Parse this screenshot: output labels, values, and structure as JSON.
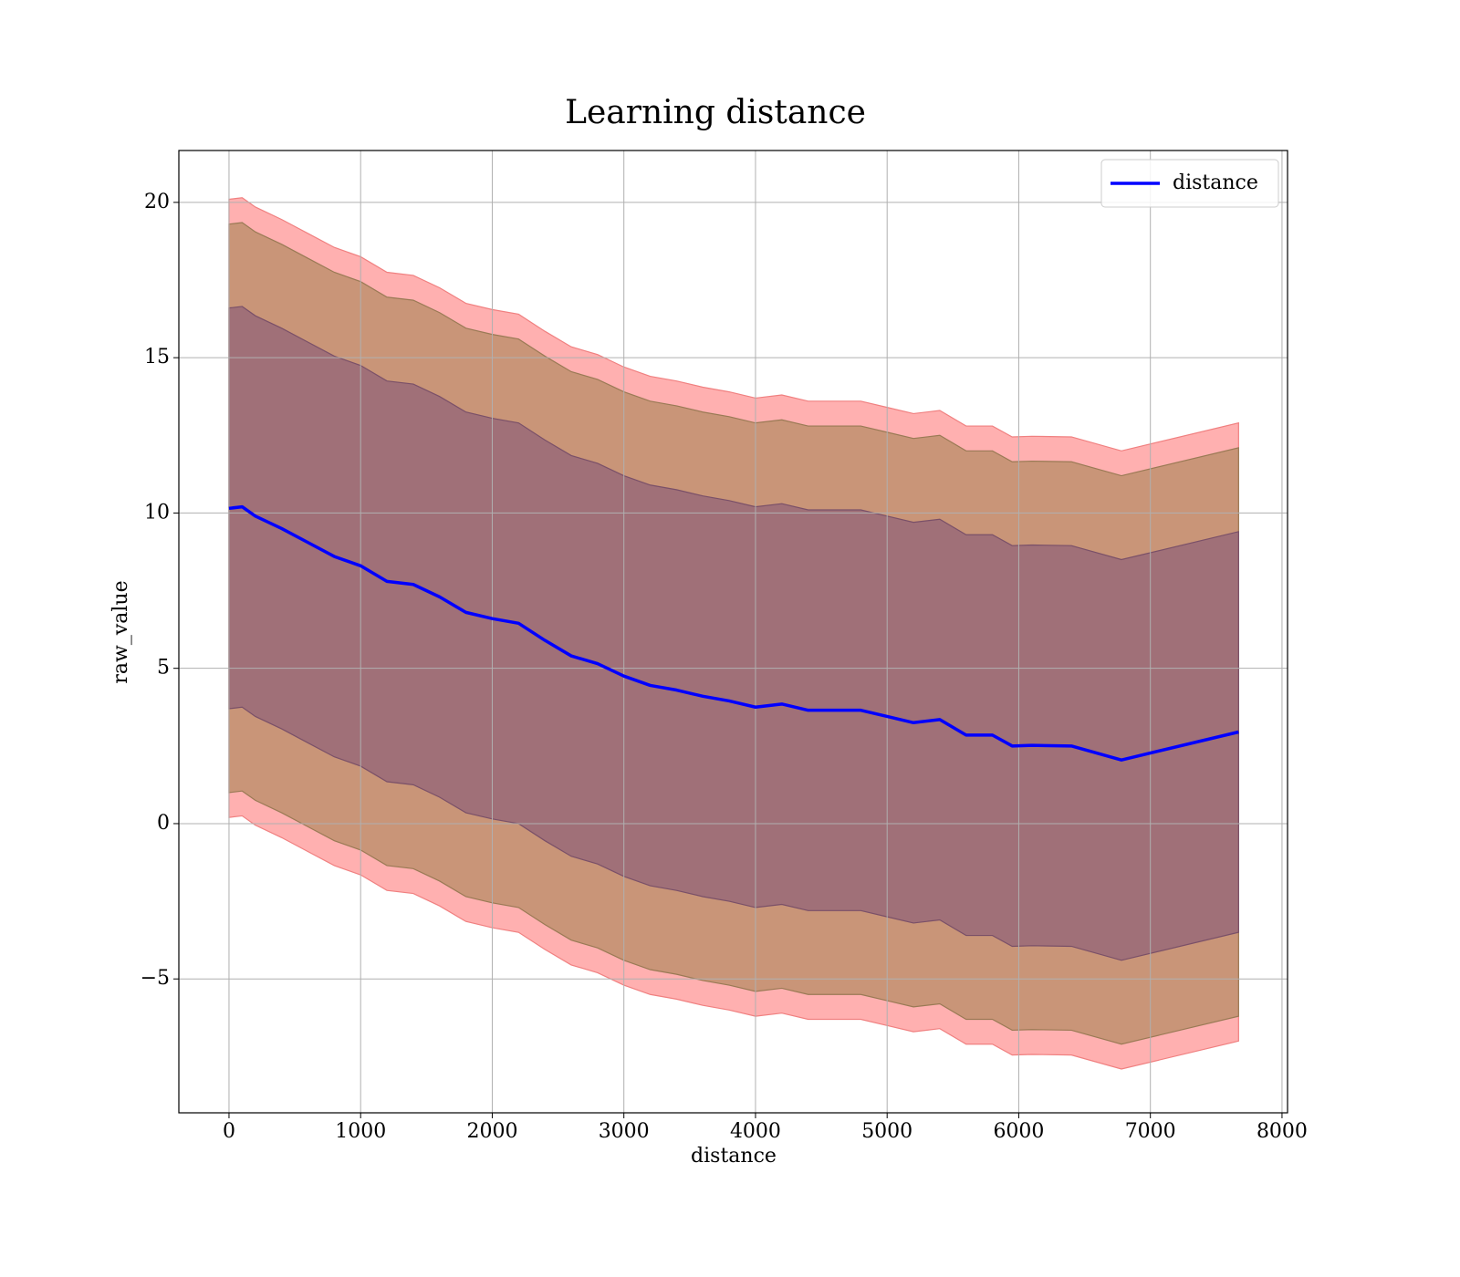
{
  "chart_data": {
    "type": "line",
    "title": "Learning distance",
    "xlabel": "distance",
    "ylabel": "raw_value",
    "x": [
      0,
      100,
      200,
      400,
      600,
      800,
      1000,
      1200,
      1400,
      1600,
      1800,
      2000,
      2200,
      2400,
      2600,
      2800,
      3000,
      3200,
      3400,
      3600,
      3800,
      4000,
      4200,
      4400,
      4600,
      4800,
      5000,
      5200,
      5400,
      5600,
      5800,
      5950,
      6100,
      6400,
      6780,
      7670
    ],
    "series": [
      {
        "name": "distance",
        "color": "#0000ff",
        "values": [
          10.15,
          10.2,
          9.9,
          9.5,
          9.05,
          8.6,
          8.3,
          7.8,
          7.7,
          7.3,
          6.8,
          6.6,
          6.45,
          5.9,
          5.4,
          5.15,
          4.75,
          4.45,
          4.3,
          4.1,
          3.95,
          3.75,
          3.85,
          3.65,
          3.65,
          3.65,
          3.45,
          3.25,
          3.35,
          2.85,
          2.85,
          2.5,
          2.52,
          2.5,
          2.05,
          2.95
        ]
      }
    ],
    "bands": [
      {
        "color": "#ffb0b0",
        "edge": "#f08080",
        "upper": [
          20.1,
          20.15,
          19.85,
          19.45,
          19.0,
          18.55,
          18.25,
          17.75,
          17.65,
          17.25,
          16.75,
          16.55,
          16.4,
          15.85,
          15.35,
          15.1,
          14.7,
          14.4,
          14.25,
          14.05,
          13.9,
          13.7,
          13.8,
          13.6,
          13.6,
          13.6,
          13.4,
          13.2,
          13.3,
          12.8,
          12.8,
          12.45,
          12.47,
          12.45,
          12.0,
          12.9
        ],
        "lower": [
          0.2,
          0.25,
          -0.05,
          -0.45,
          -0.9,
          -1.35,
          -1.65,
          -2.15,
          -2.25,
          -2.65,
          -3.15,
          -3.35,
          -3.5,
          -4.05,
          -4.55,
          -4.8,
          -5.2,
          -5.5,
          -5.65,
          -5.85,
          -6.0,
          -6.2,
          -6.1,
          -6.3,
          -6.3,
          -6.3,
          -6.5,
          -6.7,
          -6.6,
          -7.1,
          -7.1,
          -7.45,
          -7.43,
          -7.45,
          -7.9,
          -7.0
        ]
      },
      {
        "color": "#c99578",
        "edge": "#9a7a55",
        "upper": [
          19.3,
          19.35,
          19.05,
          18.65,
          18.2,
          17.75,
          17.45,
          16.95,
          16.85,
          16.45,
          15.95,
          15.75,
          15.6,
          15.05,
          14.55,
          14.3,
          13.9,
          13.6,
          13.45,
          13.25,
          13.1,
          12.9,
          13.0,
          12.8,
          12.8,
          12.8,
          12.6,
          12.4,
          12.5,
          12.0,
          12.0,
          11.65,
          11.67,
          11.65,
          11.2,
          12.1
        ],
        "lower": [
          1.0,
          1.05,
          0.75,
          0.35,
          -0.1,
          -0.55,
          -0.85,
          -1.35,
          -1.45,
          -1.85,
          -2.35,
          -2.55,
          -2.7,
          -3.25,
          -3.75,
          -4.0,
          -4.4,
          -4.7,
          -4.85,
          -5.05,
          -5.2,
          -5.4,
          -5.3,
          -5.5,
          -5.5,
          -5.5,
          -5.7,
          -5.9,
          -5.8,
          -6.3,
          -6.3,
          -6.65,
          -6.63,
          -6.65,
          -7.1,
          -6.2
        ]
      },
      {
        "color": "#a07078",
        "edge": "#7a5068",
        "upper": [
          16.6,
          16.65,
          16.35,
          15.95,
          15.5,
          15.05,
          14.75,
          14.25,
          14.15,
          13.75,
          13.25,
          13.05,
          12.9,
          12.35,
          11.85,
          11.6,
          11.2,
          10.9,
          10.75,
          10.55,
          10.4,
          10.2,
          10.3,
          10.1,
          10.1,
          10.1,
          9.9,
          9.7,
          9.8,
          9.3,
          9.3,
          8.95,
          8.97,
          8.95,
          8.5,
          9.4
        ],
        "lower": [
          3.7,
          3.75,
          3.45,
          3.05,
          2.6,
          2.15,
          1.85,
          1.35,
          1.25,
          0.85,
          0.35,
          0.15,
          0.0,
          -0.55,
          -1.05,
          -1.3,
          -1.7,
          -2.0,
          -2.15,
          -2.35,
          -2.5,
          -2.7,
          -2.6,
          -2.8,
          -2.8,
          -2.8,
          -3.0,
          -3.2,
          -3.1,
          -3.6,
          -3.6,
          -3.95,
          -3.93,
          -3.95,
          -4.4,
          -3.5
        ]
      }
    ],
    "xlim": [
      -381,
      8042
    ],
    "ylim": [
      -9.31,
      21.67
    ],
    "xticks": [
      0,
      1000,
      2000,
      3000,
      4000,
      5000,
      6000,
      7000,
      8000
    ],
    "yticks": [
      {
        "value": -5,
        "label": "−5"
      },
      0,
      5,
      10,
      15,
      20
    ],
    "grid": true,
    "legend": "upper right"
  }
}
